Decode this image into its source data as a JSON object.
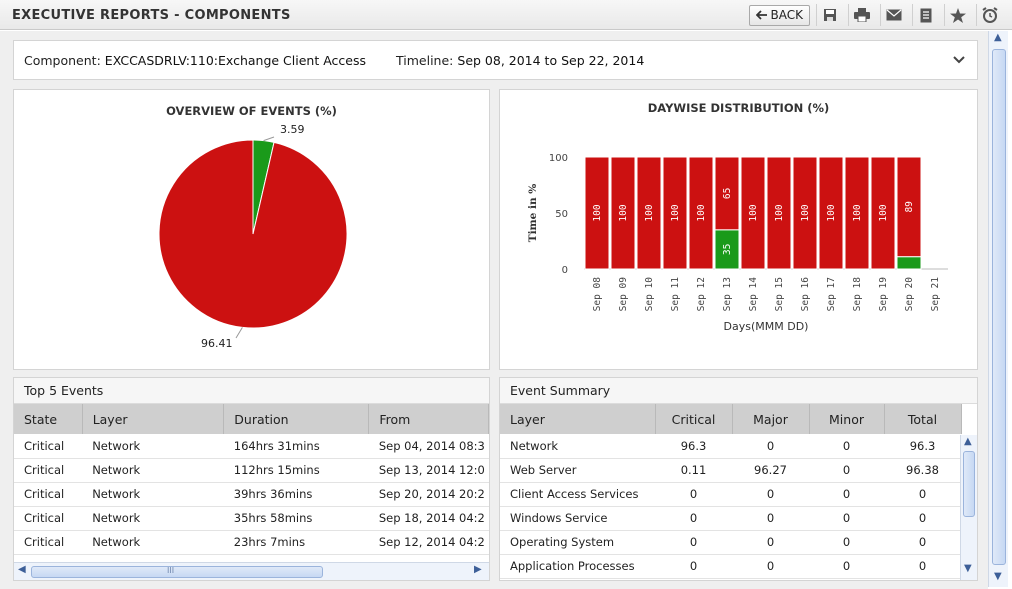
{
  "header": {
    "title": "EXECUTIVE REPORTS - COMPONENTS",
    "back_label": "BACK"
  },
  "info": {
    "component_label": "Component:",
    "component_value": "EXCCASDRLV:110:Exchange Client Access",
    "timeline_label": "Timeline:",
    "timeline_value": "Sep 08, 2014 to Sep 22, 2014"
  },
  "colors": {
    "critical_red": "#cc1111",
    "normal_green": "#1a9a1a"
  },
  "chart_data": [
    {
      "type": "pie",
      "title": "OVERVIEW OF EVENTS (%)",
      "slices": [
        {
          "label": "3.59",
          "value": 3.59,
          "color": "#1a9a1a"
        },
        {
          "label": "96.41",
          "value": 96.41,
          "color": "#cc1111"
        }
      ]
    },
    {
      "type": "bar",
      "stacked": true,
      "title": "DAYWISE DISTRIBUTION (%)",
      "xlabel": "Days(MMM DD)",
      "ylabel": "Time in %",
      "ylim": [
        0,
        100
      ],
      "yticks": [
        0,
        50,
        100
      ],
      "categories": [
        "Sep 08",
        "Sep 09",
        "Sep 10",
        "Sep 11",
        "Sep 12",
        "Sep 13",
        "Sep 14",
        "Sep 15",
        "Sep 16",
        "Sep 17",
        "Sep 18",
        "Sep 19",
        "Sep 20",
        "Sep 21"
      ],
      "series": [
        {
          "color": "#1a9a1a",
          "values": [
            0,
            0,
            0,
            0,
            0,
            35,
            0,
            0,
            0,
            0,
            0,
            0,
            11,
            0
          ],
          "labels": [
            "",
            "",
            "",
            "",
            "",
            "35",
            "",
            "",
            "",
            "",
            "",
            "",
            "",
            ""
          ]
        },
        {
          "color": "#cc1111",
          "values": [
            100,
            100,
            100,
            100,
            100,
            65,
            100,
            100,
            100,
            100,
            100,
            100,
            89,
            0
          ],
          "labels": [
            "100",
            "100",
            "100",
            "100",
            "100",
            "65",
            "100",
            "100",
            "100",
            "100",
            "100",
            "100",
            "89",
            ""
          ]
        }
      ]
    }
  ],
  "top_events": {
    "title": "Top 5 Events",
    "columns": [
      "State",
      "Layer",
      "Duration",
      "From"
    ],
    "rows": [
      [
        "Critical",
        "Network",
        "164hrs 31mins",
        "Sep 04, 2014 08:3"
      ],
      [
        "Critical",
        "Network",
        "112hrs 15mins",
        "Sep 13, 2014 12:0"
      ],
      [
        "Critical",
        "Network",
        "39hrs 36mins",
        "Sep 20, 2014 20:2"
      ],
      [
        "Critical",
        "Network",
        "35hrs 58mins",
        "Sep 18, 2014 04:2"
      ],
      [
        "Critical",
        "Network",
        "23hrs 7mins",
        "Sep 12, 2014 04:2"
      ]
    ]
  },
  "event_summary": {
    "title": "Event Summary",
    "columns": [
      "Layer",
      "Critical",
      "Major",
      "Minor",
      "Total"
    ],
    "rows": [
      [
        "Network",
        "96.3",
        "0",
        "0",
        "96.3"
      ],
      [
        "Web Server",
        "0.11",
        "96.27",
        "0",
        "96.38"
      ],
      [
        "Client Access Services",
        "0",
        "0",
        "0",
        "0"
      ],
      [
        "Windows Service",
        "0",
        "0",
        "0",
        "0"
      ],
      [
        "Operating System",
        "0",
        "0",
        "0",
        "0"
      ],
      [
        "Application Processes",
        "0",
        "0",
        "0",
        "0"
      ]
    ]
  },
  "scrollbars": {
    "events_h_grip": "III"
  }
}
